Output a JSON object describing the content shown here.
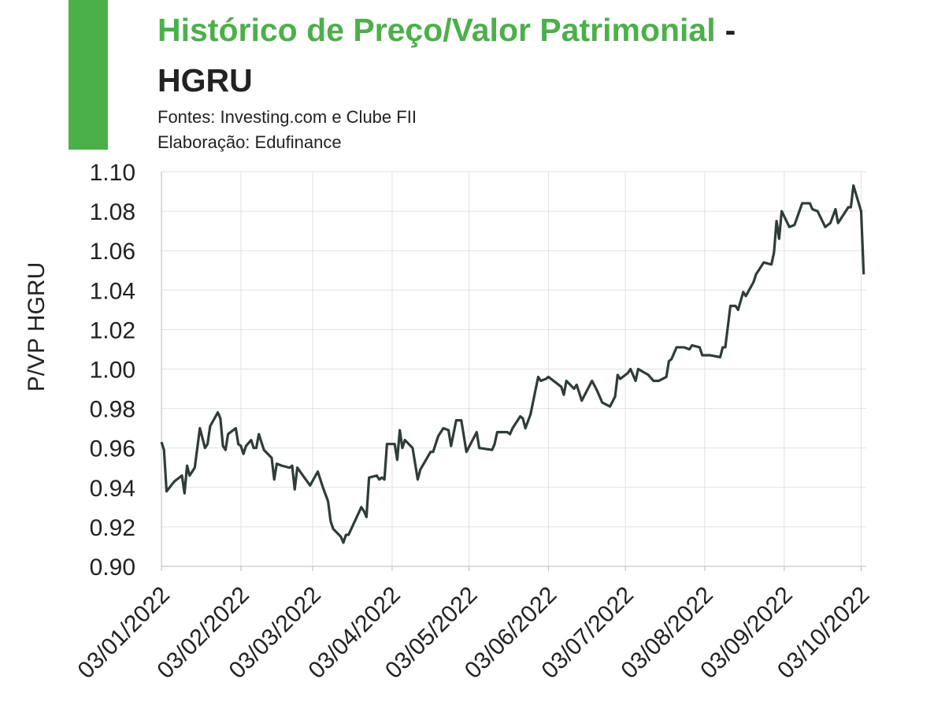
{
  "chart_data": {
    "type": "line",
    "title": "Histórico de Preço/Valor Patrimonial",
    "title_dash": "-",
    "ticker": "HGRU",
    "subtitle": [
      "Fontes: Investing.com e Clube FII",
      "Elaboração: Edufinance"
    ],
    "y_label": "P/VP HGRU",
    "color": "#2f3c37",
    "x": [
      "2022-01-03",
      "2022-01-04",
      "2022-01-05",
      "2022-01-08",
      "2022-01-11",
      "2022-01-12",
      "2022-01-13",
      "2022-01-14",
      "2022-01-16",
      "2022-01-18",
      "2022-01-20",
      "2022-01-21",
      "2022-01-22",
      "2022-01-25",
      "2022-01-26",
      "2022-01-27",
      "2022-01-28",
      "2022-01-29",
      "2022-02-01",
      "2022-02-02",
      "2022-02-03",
      "2022-02-04",
      "2022-02-05",
      "2022-02-07",
      "2022-02-08",
      "2022-02-09",
      "2022-02-10",
      "2022-02-12",
      "2022-02-15",
      "2022-02-16",
      "2022-02-17",
      "2022-02-19",
      "2022-02-22",
      "2022-02-23",
      "2022-02-24",
      "2022-02-25",
      "2022-03-02",
      "2022-03-05",
      "2022-03-07",
      "2022-03-09",
      "2022-03-10",
      "2022-03-11",
      "2022-03-14",
      "2022-03-15",
      "2022-03-16",
      "2022-03-17",
      "2022-03-22",
      "2022-03-23",
      "2022-03-24",
      "2022-03-25",
      "2022-03-28",
      "2022-03-29",
      "2022-03-30",
      "2022-03-31",
      "2022-04-01",
      "2022-04-04",
      "2022-04-05",
      "2022-04-06",
      "2022-04-07",
      "2022-04-08",
      "2022-04-11",
      "2022-04-12",
      "2022-04-13",
      "2022-04-14",
      "2022-04-18",
      "2022-04-19",
      "2022-04-21",
      "2022-04-23",
      "2022-04-25",
      "2022-04-26",
      "2022-04-28",
      "2022-04-30",
      "2022-05-02",
      "2022-05-06",
      "2022-05-07",
      "2022-05-12",
      "2022-05-13",
      "2022-05-14",
      "2022-05-18",
      "2022-05-19",
      "2022-05-20",
      "2022-05-23",
      "2022-05-24",
      "2022-05-25",
      "2022-05-27",
      "2022-05-30",
      "2022-05-31",
      "2022-06-02",
      "2022-06-03",
      "2022-06-08",
      "2022-06-09",
      "2022-06-10",
      "2022-06-13",
      "2022-06-14",
      "2022-06-16",
      "2022-06-20",
      "2022-06-22",
      "2022-06-24",
      "2022-06-27",
      "2022-06-29",
      "2022-06-30",
      "2022-07-01",
      "2022-07-04",
      "2022-07-05",
      "2022-07-07",
      "2022-07-08",
      "2022-07-12",
      "2022-07-14",
      "2022-07-16",
      "2022-07-19",
      "2022-07-20",
      "2022-07-21",
      "2022-07-23",
      "2022-07-26",
      "2022-07-28",
      "2022-07-29",
      "2022-08-01",
      "2022-08-02",
      "2022-08-05",
      "2022-08-09",
      "2022-08-10",
      "2022-08-11",
      "2022-08-13",
      "2022-08-15",
      "2022-08-16",
      "2022-08-18",
      "2022-08-19",
      "2022-08-22",
      "2022-08-23",
      "2022-08-26",
      "2022-08-29",
      "2022-08-30",
      "2022-08-31",
      "2022-09-01",
      "2022-09-02",
      "2022-09-05",
      "2022-09-07",
      "2022-09-10",
      "2022-09-13",
      "2022-09-14",
      "2022-09-16",
      "2022-09-19",
      "2022-09-21",
      "2022-09-23",
      "2022-09-24",
      "2022-09-27",
      "2022-09-28",
      "2022-09-29",
      "2022-09-30",
      "2022-10-03",
      "2022-10-04"
    ],
    "values": [
      0.963,
      0.959,
      0.938,
      0.943,
      0.946,
      0.937,
      0.951,
      0.946,
      0.95,
      0.97,
      0.96,
      0.962,
      0.971,
      0.978,
      0.975,
      0.961,
      0.959,
      0.967,
      0.97,
      0.962,
      0.961,
      0.957,
      0.961,
      0.964,
      0.96,
      0.96,
      0.967,
      0.959,
      0.955,
      0.944,
      0.952,
      0.951,
      0.95,
      0.951,
      0.939,
      0.95,
      0.941,
      0.948,
      0.94,
      0.933,
      0.923,
      0.919,
      0.915,
      0.912,
      0.916,
      0.916,
      0.93,
      0.928,
      0.925,
      0.945,
      0.946,
      0.944,
      0.945,
      0.944,
      0.962,
      0.962,
      0.954,
      0.969,
      0.96,
      0.964,
      0.96,
      0.952,
      0.944,
      0.949,
      0.958,
      0.958,
      0.966,
      0.97,
      0.969,
      0.961,
      0.974,
      0.974,
      0.958,
      0.968,
      0.96,
      0.959,
      0.962,
      0.968,
      0.968,
      0.967,
      0.97,
      0.976,
      0.975,
      0.97,
      0.977,
      0.996,
      0.994,
      0.995,
      0.996,
      0.991,
      0.987,
      0.994,
      0.99,
      0.992,
      0.984,
      0.994,
      0.989,
      0.983,
      0.981,
      0.986,
      0.997,
      0.995,
      0.998,
      1.0,
      0.994,
      1.0,
      0.997,
      0.994,
      0.994,
      0.996,
      1.004,
      1.005,
      1.011,
      1.011,
      1.01,
      1.012,
      1.011,
      1.007,
      1.007,
      1.006,
      1.011,
      1.011,
      1.032,
      1.032,
      1.03,
      1.039,
      1.037,
      1.044,
      1.048,
      1.054,
      1.053,
      1.059,
      1.075,
      1.066,
      1.08,
      1.072,
      1.073,
      1.084,
      1.084,
      1.081,
      1.08,
      1.072,
      1.074,
      1.081,
      1.074,
      1.08,
      1.082,
      1.082,
      1.093,
      1.08,
      1.048
    ],
    "xlim": [
      "2022-01-03",
      "2022-10-05"
    ],
    "xticks": [
      {
        "value": "2022-01-03",
        "label": "03/01/2022"
      },
      {
        "value": "2022-02-03",
        "label": "03/02/2022"
      },
      {
        "value": "2022-03-03",
        "label": "03/03/2022"
      },
      {
        "value": "2022-04-03",
        "label": "03/04/2022"
      },
      {
        "value": "2022-05-03",
        "label": "03/05/2022"
      },
      {
        "value": "2022-06-03",
        "label": "03/06/2022"
      },
      {
        "value": "2022-07-03",
        "label": "03/07/2022"
      },
      {
        "value": "2022-08-03",
        "label": "03/08/2022"
      },
      {
        "value": "2022-09-03",
        "label": "03/09/2022"
      },
      {
        "value": "2022-10-03",
        "label": "03/10/2022"
      }
    ],
    "ylim": [
      0.9,
      1.1
    ],
    "yticks": [
      {
        "value": 0.9,
        "label": "0.90"
      },
      0.92,
      0.94,
      0.96,
      0.98,
      {
        "value": 1.0,
        "label": "1.00"
      },
      1.02,
      1.04,
      1.06,
      1.08,
      {
        "value": 1.1,
        "label": "1.10"
      }
    ],
    "grid": true
  }
}
